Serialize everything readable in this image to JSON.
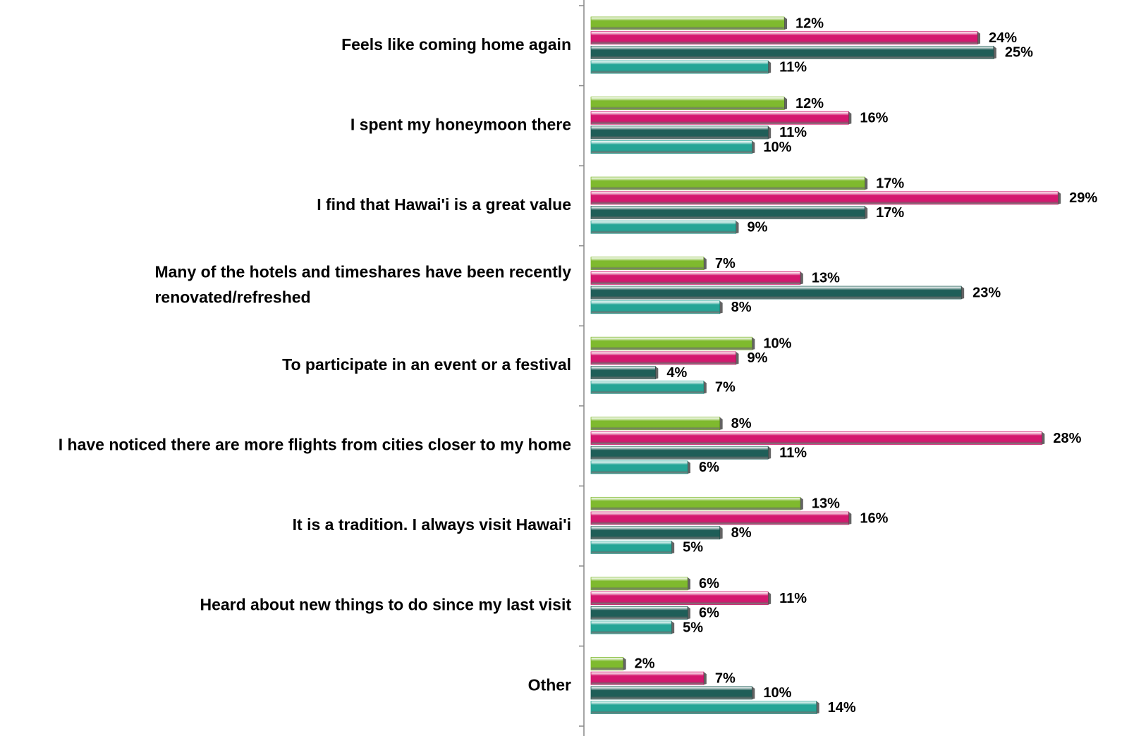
{
  "chart_data": {
    "type": "hbar",
    "categories": [
      "Feels like coming home again",
      "I spent my honeymoon there",
      "I find that Hawai'i is a great value",
      "Many of the hotels and timeshares have been recently renovated/refreshed",
      "To participate in an event or a festival",
      "I have noticed there are more flights from cities closer to my home",
      "It is a tradition. I always visit Hawai'i",
      "Heard about new things to do since my last visit",
      "Other"
    ],
    "series": [
      {
        "color": "#7fba2e",
        "values": [
          12,
          12,
          17,
          7,
          10,
          8,
          13,
          6,
          2
        ],
        "value_labels": [
          "12%",
          "12%",
          "17%",
          "7%",
          "10%",
          "8%",
          "13%",
          "6%",
          "2%"
        ]
      },
      {
        "color": "#d4186f",
        "values": [
          24,
          16,
          29,
          13,
          9,
          28,
          16,
          11,
          7
        ],
        "value_labels": [
          "24%",
          "16%",
          "29%",
          "13%",
          "9%",
          "28%",
          "16%",
          "11%",
          "7%"
        ]
      },
      {
        "color": "#1f5e58",
        "values": [
          25,
          11,
          17,
          23,
          4,
          11,
          8,
          6,
          10
        ],
        "value_labels": [
          "25%",
          "11%",
          "17%",
          "23%",
          "4%",
          "11%",
          "8%",
          "6%",
          "10%"
        ]
      },
      {
        "color": "#25a596",
        "values": [
          11,
          10,
          9,
          8,
          7,
          6,
          5,
          5,
          14
        ],
        "value_labels": [
          "11%",
          "10%",
          "9%",
          "8%",
          "7%",
          "6%",
          "5%",
          "5%",
          "14%"
        ]
      }
    ],
    "xlim": [
      0,
      30
    ]
  }
}
